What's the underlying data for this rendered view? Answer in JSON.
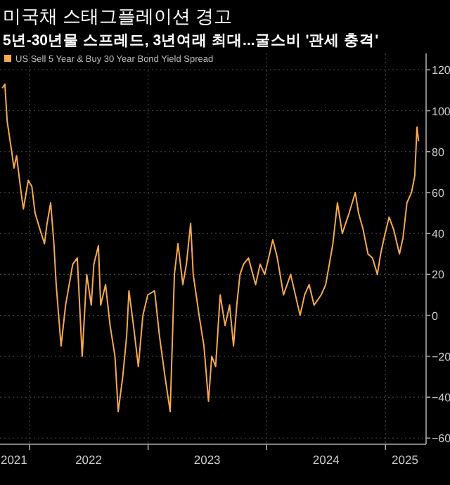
{
  "chart_data": {
    "type": "line",
    "title": "미국채 스태그플레이션 경고",
    "subtitle": "5년-30년물 스프레드, 3년여래 최대...굴스비 '관세 충격'",
    "xlim": [
      "2021-10-02",
      "2025-05-06"
    ],
    "xticks": [
      {
        "value": "2021-11-14",
        "label": "2021"
      },
      {
        "value": "2022-01-01",
        "label": null
      },
      {
        "value": "2022-07-02",
        "label": "2022"
      },
      {
        "value": "2023-01-01",
        "label": null
      },
      {
        "value": "2023-07-02",
        "label": "2023"
      },
      {
        "value": "2024-01-01",
        "label": null
      },
      {
        "value": "2024-07-02",
        "label": "2024"
      },
      {
        "value": "2025-01-01",
        "label": null
      },
      {
        "value": "2025-03-02",
        "label": "2025"
      }
    ],
    "ylim": [
      -63,
      128
    ],
    "yticks": [
      -60,
      -40,
      -20,
      0,
      20,
      40,
      60,
      80,
      100,
      120
    ],
    "grid": true,
    "legend": "top left",
    "series": [
      {
        "name": "US Sell 5 Year & Buy 30 Year Bond Yield Spread",
        "color": "#f4a950",
        "x": [
          "2021-10-09",
          "2021-10-17",
          "2021-10-24",
          "2021-11-07",
          "2021-11-14",
          "2021-11-22",
          "2021-12-06",
          "2021-12-13",
          "2021-12-28",
          "2022-01-08",
          "2022-01-18",
          "2022-02-02",
          "2022-02-16",
          "2022-02-23",
          "2022-03-07",
          "2022-03-17",
          "2022-03-24",
          "2022-04-08",
          "2022-04-22",
          "2022-05-14",
          "2022-05-28",
          "2022-06-12",
          "2022-06-26",
          "2022-07-10",
          "2022-07-18",
          "2022-08-01",
          "2022-08-08",
          "2022-08-23",
          "2022-09-06",
          "2022-09-21",
          "2022-10-01",
          "2022-10-15",
          "2022-10-27",
          "2022-11-03",
          "2022-11-17",
          "2022-12-02",
          "2022-12-16",
          "2022-12-31",
          "2023-01-21",
          "2023-02-05",
          "2023-02-22",
          "2023-03-10",
          "2023-03-23",
          "2023-04-03",
          "2023-04-18",
          "2023-04-29",
          "2023-05-12",
          "2023-05-20",
          "2023-06-07",
          "2023-06-22",
          "2023-07-06",
          "2023-07-16",
          "2023-07-28",
          "2023-08-11",
          "2023-08-26",
          "2023-09-09",
          "2023-09-21",
          "2023-10-01",
          "2023-10-11",
          "2023-10-22",
          "2023-11-06",
          "2023-11-28",
          "2023-12-12",
          "2023-12-26",
          "2024-01-10",
          "2024-01-20",
          "2024-02-03",
          "2024-02-22",
          "2024-03-15",
          "2024-04-13",
          "2024-04-27",
          "2024-05-11",
          "2024-05-26",
          "2024-06-17",
          "2024-07-01",
          "2024-07-23",
          "2024-08-06",
          "2024-08-21",
          "2024-09-11",
          "2024-09-30",
          "2024-10-10",
          "2024-10-24",
          "2024-11-08",
          "2024-11-22",
          "2024-12-07",
          "2024-12-17",
          "2024-12-28",
          "2025-01-12",
          "2025-01-26",
          "2025-02-13",
          "2025-02-24",
          "2025-03-08",
          "2025-03-22",
          "2025-04-01",
          "2025-04-08",
          "2025-04-13"
        ],
        "values": [
          111,
          113,
          95,
          80,
          72,
          78,
          60,
          52,
          66,
          63,
          50,
          42,
          35,
          44,
          55,
          35,
          15,
          -15,
          5,
          25,
          28,
          -20,
          20,
          5,
          25,
          34,
          5,
          15,
          -5,
          -20,
          -47,
          -30,
          -10,
          12,
          -5,
          -25,
          0,
          10,
          12,
          -10,
          -30,
          -47,
          20,
          35,
          15,
          25,
          45,
          20,
          0,
          -15,
          -42,
          -20,
          -25,
          10,
          -5,
          5,
          -15,
          5,
          20,
          25,
          28,
          15,
          25,
          20,
          30,
          37,
          28,
          10,
          20,
          0,
          10,
          15,
          5,
          10,
          15,
          35,
          55,
          40,
          50,
          60,
          50,
          42,
          30,
          28,
          20,
          30,
          38,
          48,
          42,
          30,
          38,
          55,
          60,
          68,
          92,
          85
        ]
      }
    ]
  }
}
